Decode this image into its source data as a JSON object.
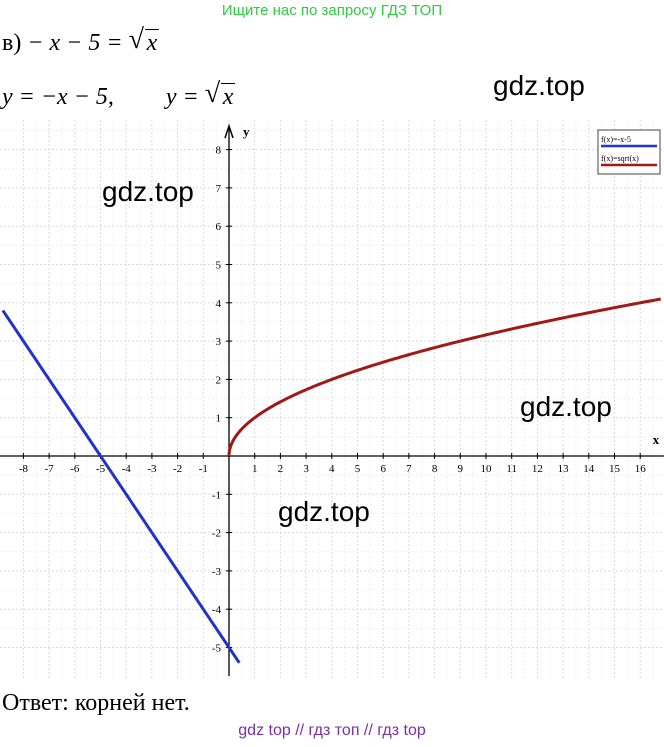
{
  "banner": "Ищите нас по запросу ГДЗ ТОП",
  "equation": {
    "label": "в)",
    "lhs": "− x − 5 =",
    "rad": "x"
  },
  "functions_line": {
    "y1": "y = −x − 5,",
    "y2_lhs": "y =",
    "y2_rad": "x"
  },
  "watermarks": [
    "gdz.top",
    "gdz.top",
    "gdz.top",
    "gdz.top"
  ],
  "answer": "Ответ: корней нет.",
  "footer": "gdz top  //  гдз топ  //  гдз top",
  "colors": {
    "line1": "#2233cc",
    "line2": "#a01818",
    "banner": "#2ecc40",
    "footer": "#7b2fa8"
  },
  "chart_data": {
    "type": "line",
    "xlabel": "x",
    "ylabel": "y",
    "xlim": [
      -8.8,
      16.8
    ],
    "ylim": [
      -5.4,
      8.6
    ],
    "x_ticks": [
      -8,
      -7,
      -6,
      -5,
      -4,
      -3,
      -2,
      -1,
      1,
      2,
      3,
      4,
      5,
      6,
      7,
      8,
      9,
      10,
      11,
      12,
      13,
      14,
      15,
      16
    ],
    "y_ticks": [
      -5,
      -4,
      -3,
      -2,
      -1,
      1,
      2,
      3,
      4,
      5,
      6,
      7,
      8
    ],
    "grid": true,
    "legend_position": "top-right",
    "series": [
      {
        "name": "f(x)=-x-5",
        "formula": "-x-5",
        "x": [
          -8.8,
          0.4
        ],
        "y": [
          3.8,
          -5.4
        ]
      },
      {
        "name": "f(x)=sqrt(x)",
        "formula": "sqrt(x)",
        "x": [
          0,
          1,
          4,
          9,
          16,
          16.8
        ],
        "y": [
          0,
          1,
          2,
          3,
          4,
          4.1
        ]
      }
    ]
  }
}
